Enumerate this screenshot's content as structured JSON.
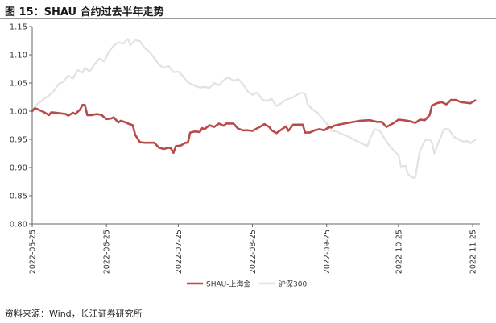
{
  "header": {
    "title": "图 15：SHAU 合约过去半年走势"
  },
  "footer": {
    "source": "资料来源：Wind，长江证券研究所"
  },
  "chart_data": {
    "type": "line",
    "ylim": [
      0.8,
      1.15
    ],
    "yticks": [
      "0.80",
      "0.85",
      "0.90",
      "0.95",
      "1.00",
      "1.05",
      "1.10",
      "1.15"
    ],
    "xlim": [
      "2022-05-25",
      "2022-11-28"
    ],
    "xticks": [
      "2022-05-25",
      "2022-06-25",
      "2022-07-25",
      "2022-08-25",
      "2022-09-25",
      "2022-10-25",
      "2022-11-25"
    ],
    "legend_position": "bottom",
    "grid": false,
    "series": [
      {
        "name": "SHAU-上海金",
        "color": "#b94a4a",
        "points": [
          [
            "2022-05-25",
            1.0
          ],
          [
            "2022-05-26",
            1.005
          ],
          [
            "2022-05-27",
            1.004
          ],
          [
            "2022-05-29",
            1.0
          ],
          [
            "2022-05-30",
            0.998
          ],
          [
            "2022-06-01",
            0.993
          ],
          [
            "2022-06-02",
            0.998
          ],
          [
            "2022-06-04",
            0.997
          ],
          [
            "2022-06-06",
            0.996
          ],
          [
            "2022-06-08",
            0.995
          ],
          [
            "2022-06-09",
            0.992
          ],
          [
            "2022-06-11",
            0.997
          ],
          [
            "2022-06-12",
            0.995
          ],
          [
            "2022-06-14",
            1.003
          ],
          [
            "2022-06-15",
            1.011
          ],
          [
            "2022-06-16",
            1.011
          ],
          [
            "2022-06-17",
            0.993
          ],
          [
            "2022-06-19",
            0.993
          ],
          [
            "2022-06-21",
            0.995
          ],
          [
            "2022-06-23",
            0.993
          ],
          [
            "2022-06-25",
            0.986
          ],
          [
            "2022-06-27",
            0.987
          ],
          [
            "2022-06-28",
            0.989
          ],
          [
            "2022-06-30",
            0.98
          ],
          [
            "2022-07-01",
            0.983
          ],
          [
            "2022-07-03",
            0.98
          ],
          [
            "2022-07-04",
            0.978
          ],
          [
            "2022-07-06",
            0.975
          ],
          [
            "2022-07-07",
            0.958
          ],
          [
            "2022-07-09",
            0.945
          ],
          [
            "2022-07-11",
            0.944
          ],
          [
            "2022-07-13",
            0.944
          ],
          [
            "2022-07-15",
            0.944
          ],
          [
            "2022-07-17",
            0.935
          ],
          [
            "2022-07-19",
            0.933
          ],
          [
            "2022-07-21",
            0.935
          ],
          [
            "2022-07-22",
            0.934
          ],
          [
            "2022-07-23",
            0.926
          ],
          [
            "2022-07-24",
            0.938
          ],
          [
            "2022-07-26",
            0.939
          ],
          [
            "2022-07-28",
            0.944
          ],
          [
            "2022-07-29",
            0.944
          ],
          [
            "2022-07-30",
            0.962
          ],
          [
            "2022-08-01",
            0.964
          ],
          [
            "2022-08-03",
            0.963
          ],
          [
            "2022-08-04",
            0.97
          ],
          [
            "2022-08-05",
            0.968
          ],
          [
            "2022-08-07",
            0.975
          ],
          [
            "2022-08-09",
            0.972
          ],
          [
            "2022-08-11",
            0.978
          ],
          [
            "2022-08-13",
            0.974
          ],
          [
            "2022-08-14",
            0.978
          ],
          [
            "2022-08-17",
            0.978
          ],
          [
            "2022-08-19",
            0.969
          ],
          [
            "2022-08-21",
            0.966
          ],
          [
            "2022-08-23",
            0.966
          ],
          [
            "2022-08-25",
            0.965
          ],
          [
            "2022-08-28",
            0.972
          ],
          [
            "2022-08-30",
            0.977
          ],
          [
            "2022-09-01",
            0.972
          ],
          [
            "2022-09-02",
            0.966
          ],
          [
            "2022-09-04",
            0.961
          ],
          [
            "2022-09-06",
            0.967
          ],
          [
            "2022-09-08",
            0.973
          ],
          [
            "2022-09-09",
            0.965
          ],
          [
            "2022-09-11",
            0.976
          ],
          [
            "2022-09-13",
            0.976
          ],
          [
            "2022-09-15",
            0.976
          ],
          [
            "2022-09-16",
            0.962
          ],
          [
            "2022-09-18",
            0.962
          ],
          [
            "2022-09-20",
            0.966
          ],
          [
            "2022-09-22",
            0.968
          ],
          [
            "2022-09-24",
            0.966
          ],
          [
            "2022-09-26",
            0.972
          ],
          [
            "2022-09-27",
            0.971
          ],
          [
            "2022-09-28",
            0.974
          ],
          [
            "2022-10-01",
            0.977
          ],
          [
            "2022-10-05",
            0.98
          ],
          [
            "2022-10-09",
            0.983
          ],
          [
            "2022-10-13",
            0.984
          ],
          [
            "2022-10-16",
            0.981
          ],
          [
            "2022-10-18",
            0.981
          ],
          [
            "2022-10-20",
            0.972
          ],
          [
            "2022-10-23",
            0.979
          ],
          [
            "2022-10-25",
            0.985
          ],
          [
            "2022-10-27",
            0.984
          ],
          [
            "2022-10-30",
            0.982
          ],
          [
            "2022-11-01",
            0.979
          ],
          [
            "2022-11-03",
            0.985
          ],
          [
            "2022-11-05",
            0.984
          ],
          [
            "2022-11-07",
            0.993
          ],
          [
            "2022-11-08",
            1.01
          ],
          [
            "2022-11-10",
            1.014
          ],
          [
            "2022-11-12",
            1.016
          ],
          [
            "2022-11-14",
            1.012
          ],
          [
            "2022-11-16",
            1.02
          ],
          [
            "2022-11-18",
            1.02
          ],
          [
            "2022-11-20",
            1.016
          ],
          [
            "2022-11-22",
            1.015
          ],
          [
            "2022-11-24",
            1.014
          ],
          [
            "2022-11-26",
            1.019
          ]
        ]
      },
      {
        "name": "沪深300",
        "color": "#e2e2e2",
        "points": [
          [
            "2022-05-25",
            1.0
          ],
          [
            "2022-05-27",
            1.012
          ],
          [
            "2022-05-30",
            1.022
          ],
          [
            "2022-06-01",
            1.028
          ],
          [
            "2022-06-03",
            1.036
          ],
          [
            "2022-06-05",
            1.048
          ],
          [
            "2022-06-07",
            1.052
          ],
          [
            "2022-06-09",
            1.063
          ],
          [
            "2022-06-11",
            1.058
          ],
          [
            "2022-06-13",
            1.073
          ],
          [
            "2022-06-15",
            1.068
          ],
          [
            "2022-06-16",
            1.077
          ],
          [
            "2022-06-18",
            1.07
          ],
          [
            "2022-06-20",
            1.083
          ],
          [
            "2022-06-22",
            1.093
          ],
          [
            "2022-06-24",
            1.088
          ],
          [
            "2022-06-26",
            1.105
          ],
          [
            "2022-06-28",
            1.116
          ],
          [
            "2022-06-30",
            1.122
          ],
          [
            "2022-07-02",
            1.12
          ],
          [
            "2022-07-04",
            1.128
          ],
          [
            "2022-07-05",
            1.117
          ],
          [
            "2022-07-07",
            1.126
          ],
          [
            "2022-07-09",
            1.124
          ],
          [
            "2022-07-11",
            1.112
          ],
          [
            "2022-07-13",
            1.105
          ],
          [
            "2022-07-15",
            1.094
          ],
          [
            "2022-07-17",
            1.082
          ],
          [
            "2022-07-19",
            1.077
          ],
          [
            "2022-07-21",
            1.08
          ],
          [
            "2022-07-23",
            1.069
          ],
          [
            "2022-07-25",
            1.07
          ],
          [
            "2022-07-27",
            1.062
          ],
          [
            "2022-07-29",
            1.051
          ],
          [
            "2022-08-01",
            1.045
          ],
          [
            "2022-08-03",
            1.042
          ],
          [
            "2022-08-05",
            1.043
          ],
          [
            "2022-08-07",
            1.041
          ],
          [
            "2022-08-09",
            1.05
          ],
          [
            "2022-08-11",
            1.046
          ],
          [
            "2022-08-13",
            1.055
          ],
          [
            "2022-08-15",
            1.06
          ],
          [
            "2022-08-17",
            1.054
          ],
          [
            "2022-08-19",
            1.057
          ],
          [
            "2022-08-21",
            1.048
          ],
          [
            "2022-08-23",
            1.035
          ],
          [
            "2022-08-25",
            1.029
          ],
          [
            "2022-08-27",
            1.033
          ],
          [
            "2022-08-29",
            1.021
          ],
          [
            "2022-08-31",
            1.018
          ],
          [
            "2022-09-02",
            1.022
          ],
          [
            "2022-09-04",
            1.009
          ],
          [
            "2022-09-06",
            1.014
          ],
          [
            "2022-09-08",
            1.02
          ],
          [
            "2022-09-10",
            1.023
          ],
          [
            "2022-09-12",
            1.027
          ],
          [
            "2022-09-14",
            1.033
          ],
          [
            "2022-09-16",
            1.031
          ],
          [
            "2022-09-17",
            1.013
          ],
          [
            "2022-09-19",
            1.003
          ],
          [
            "2022-09-21",
            0.998
          ],
          [
            "2022-09-23",
            0.988
          ],
          [
            "2022-09-25",
            0.978
          ],
          [
            "2022-09-27",
            0.965
          ],
          [
            "2022-09-29",
            0.964
          ],
          [
            "2022-10-01",
            0.96
          ],
          [
            "2022-10-04",
            0.955
          ],
          [
            "2022-10-07",
            0.948
          ],
          [
            "2022-10-10",
            0.942
          ],
          [
            "2022-10-12",
            0.938
          ],
          [
            "2022-10-13",
            0.95
          ],
          [
            "2022-10-15",
            0.968
          ],
          [
            "2022-10-17",
            0.966
          ],
          [
            "2022-10-19",
            0.953
          ],
          [
            "2022-10-21",
            0.94
          ],
          [
            "2022-10-23",
            0.93
          ],
          [
            "2022-10-25",
            0.922
          ],
          [
            "2022-10-26",
            0.902
          ],
          [
            "2022-10-28",
            0.903
          ],
          [
            "2022-10-29",
            0.888
          ],
          [
            "2022-10-31",
            0.882
          ],
          [
            "2022-11-01",
            0.882
          ],
          [
            "2022-11-02",
            0.908
          ],
          [
            "2022-11-03",
            0.93
          ],
          [
            "2022-11-05",
            0.948
          ],
          [
            "2022-11-07",
            0.95
          ],
          [
            "2022-11-08",
            0.944
          ],
          [
            "2022-11-09",
            0.925
          ],
          [
            "2022-11-11",
            0.948
          ],
          [
            "2022-11-13",
            0.968
          ],
          [
            "2022-11-15",
            0.968
          ],
          [
            "2022-11-17",
            0.955
          ],
          [
            "2022-11-19",
            0.95
          ],
          [
            "2022-11-21",
            0.946
          ],
          [
            "2022-11-23",
            0.947
          ],
          [
            "2022-11-24",
            0.943
          ],
          [
            "2022-11-26",
            0.949
          ]
        ]
      }
    ]
  }
}
